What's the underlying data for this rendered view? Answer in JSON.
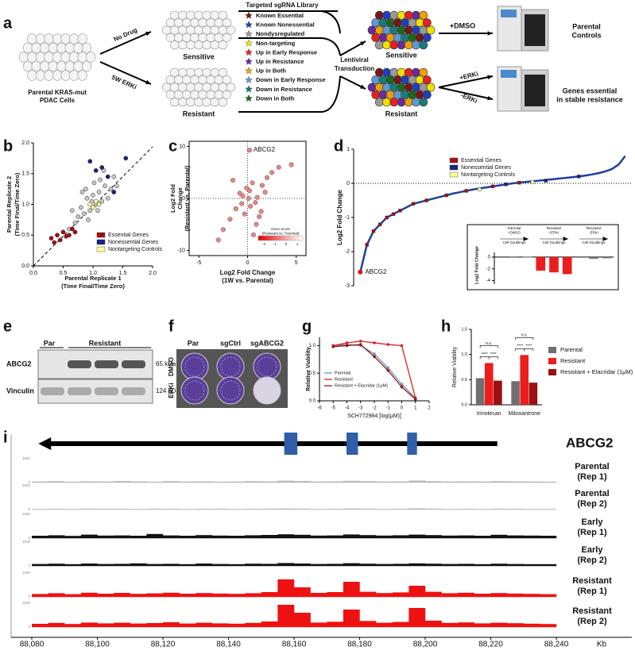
{
  "panel_labels": [
    "a",
    "b",
    "c",
    "d",
    "e",
    "f",
    "g",
    "h",
    "i"
  ],
  "schematic": {
    "start": [
      "Parental KRAS-mut",
      "PDAC Cells"
    ],
    "arms": [
      "No Drug",
      "5W ERKi"
    ],
    "populations": [
      "Sensitive",
      "Resistant"
    ],
    "library_title": "Targeted sgRNA Library",
    "library": [
      {
        "name": "Known Essential",
        "color": "#7b1616"
      },
      {
        "name": "Known Nonessential",
        "color": "#1f3fbf"
      },
      {
        "name": "Nondysregulated",
        "color": "#999999"
      },
      {
        "name": "Non-targeting",
        "color": "#f0e000"
      },
      {
        "name": "Up in Early Response",
        "color": "#e82020"
      },
      {
        "name": "Up in Resistance",
        "color": "#6a2a9a"
      },
      {
        "name": "Up in Both",
        "color": "#f0a000"
      },
      {
        "name": "Down in Early Response",
        "color": "#5b9bd5"
      },
      {
        "name": "Down in Resistance",
        "color": "#1a7a7a"
      },
      {
        "name": "Down in Both",
        "color": "#1a6a1a"
      }
    ],
    "transduction": [
      "Lentiviral",
      "Transduction"
    ],
    "transduced": [
      "Sensitive",
      "Resistant"
    ],
    "treatments": [
      "+DMSO",
      "+ERKi",
      "-ERKi"
    ],
    "outcomes": [
      [
        "Parental",
        "Controls"
      ],
      [
        "Genes essential",
        "in stable resistance"
      ]
    ]
  },
  "blot": {
    "lanes": [
      "Par",
      "Resistant"
    ],
    "proteins": [
      "ABCG2",
      "Vinculin"
    ],
    "sizes": [
      "65 kDa",
      "124 kDa"
    ]
  },
  "colony": {
    "columns": [
      "Par",
      "sgCtrl",
      "sgABCG2"
    ],
    "rows": [
      "DMSO",
      "ERKi"
    ]
  },
  "chart_data": [
    {
      "type": "scatter",
      "xlabel": [
        "Parental Replicate 1",
        "(Time Final/Time Zero)"
      ],
      "ylabel": [
        "Parental Replicate 2",
        "(Time Final/Time Zero)"
      ],
      "xlim": [
        0,
        2
      ],
      "ylim": [
        0,
        2
      ],
      "xticks": [
        {
          "value": 0,
          "label": "0.0"
        },
        {
          "value": 0.5,
          "label": "0.5"
        },
        {
          "value": 1,
          "label": "1.0"
        },
        {
          "value": 1.5,
          "label": "1.5"
        },
        {
          "value": 2,
          "label": "2.0"
        }
      ],
      "yticks": [
        {
          "value": 0,
          "label": "0.0"
        },
        {
          "value": 0.5,
          "label": "0.5"
        },
        {
          "value": 1,
          "label": "1.0"
        },
        {
          "value": 1.5,
          "label": "1.5"
        },
        {
          "value": 2,
          "label": "2.0"
        }
      ],
      "series": [
        {
          "color": "#c8c8c8",
          "x": [
            0.75,
            0.8,
            0.85,
            0.9,
            0.95,
            1.0,
            1.05,
            1.1,
            1.15,
            1.2,
            1.25,
            0.7,
            0.88,
            0.92,
            1.02,
            1.08,
            1.12,
            1.3,
            0.65,
            0.98,
            1.18,
            1.4,
            0.6,
            1.35,
            0.82
          ],
          "y": [
            0.8,
            0.95,
            0.85,
            1.1,
            0.9,
            1.15,
            1.0,
            1.2,
            1.05,
            1.3,
            1.1,
            0.7,
            1.25,
            0.75,
            1.35,
            0.9,
            1.4,
            1.25,
            0.9,
            1.05,
            1.55,
            1.3,
            0.6,
            1.45,
            1.2
          ]
        },
        {
          "name": "Essential Genes",
          "color": "#a50f15",
          "x": [
            0.3,
            0.4,
            0.45,
            0.5,
            0.55,
            0.6,
            0.65,
            0.7,
            0.35
          ],
          "y": [
            0.45,
            0.5,
            0.42,
            0.55,
            0.48,
            0.5,
            0.6,
            0.55,
            0.38
          ]
        },
        {
          "name": "Nonessential Genes",
          "color": "#1a237e",
          "x": [
            0.95,
            1.05,
            1.15,
            1.25,
            1.55,
            1.35
          ],
          "y": [
            1.7,
            1.55,
            1.6,
            1.45,
            1.75,
            1.2
          ]
        },
        {
          "name": "Nontargeting Controls",
          "color": "#ffff99",
          "x": [
            0.95,
            1.0,
            1.05,
            1.1
          ],
          "y": [
            1.0,
            0.95,
            1.05,
            1.0
          ]
        }
      ]
    },
    {
      "type": "scatter",
      "xlabel": [
        "Log2  Fold  Change",
        "(1W vs. Parental)"
      ],
      "ylabel": [
        "Log2 Fold",
        "Change",
        "(Resistant vs. Parental)"
      ],
      "xlim": [
        -6,
        6
      ],
      "ylim": [
        -11,
        11
      ],
      "xticks": [
        -5,
        0,
        5
      ],
      "yticks": [
        -10,
        0,
        10
      ],
      "series": [
        {
          "color": "#e08a8a",
          "x": [
            -0.5,
            0.2,
            0.8,
            -1.2,
            1.5,
            -0.3,
            0.5,
            1.0,
            -0.8,
            2.0,
            -1.8,
            0.3,
            1.2,
            -0.1,
            2.5,
            -2.5,
            0.9,
            -1.5,
            3.2,
            0.6,
            -0.6,
            1.8,
            4.5,
            -3,
            0.1,
            1.4
          ],
          "y": [
            0.5,
            1.5,
            -0.8,
            -2,
            2.5,
            -3,
            3,
            0.2,
            1,
            4,
            -4,
            -1.5,
            -3.5,
            2,
            5,
            -6,
            -5,
            3.5,
            6,
            -7,
            -1,
            1.2,
            6.5,
            -8,
            0,
            -2.5
          ]
        }
      ],
      "annotations": [
        {
          "text": "ABCG2",
          "x": 0.2,
          "y": 9.3
        }
      ],
      "colorbar": {
        "title": [
          "Gene Score",
          "(Resistant vs. Parental)"
        ],
        "ticks": [
          -2,
          -1,
          0,
          1
        ]
      }
    },
    {
      "type": "line",
      "ylabel": "Log2 Fold  Change",
      "xlim": [
        -1,
        41
      ],
      "ylim": [
        -3,
        1
      ],
      "yticks": [
        -3,
        -2,
        -1,
        0,
        1
      ],
      "series": [
        {
          "color": "#1f3f9f",
          "x": [
            0,
            1,
            2,
            3,
            4,
            5,
            6,
            7,
            8,
            9,
            10,
            11,
            12,
            13,
            14,
            15,
            16,
            17,
            18,
            19,
            20,
            21,
            22,
            23,
            24,
            25,
            26,
            27,
            28,
            29,
            30,
            31,
            32,
            33,
            34,
            35,
            36,
            37,
            38,
            39,
            40
          ],
          "values": [
            -2.6,
            -1.8,
            -1.4,
            -1.2,
            -1.0,
            -0.9,
            -0.8,
            -0.7,
            -0.6,
            -0.55,
            -0.5,
            -0.45,
            -0.4,
            -0.35,
            -0.3,
            -0.26,
            -0.22,
            -0.18,
            -0.15,
            -0.12,
            -0.09,
            -0.06,
            -0.03,
            0,
            0.02,
            0.04,
            0.06,
            0.08,
            0.1,
            0.12,
            0.14,
            0.16,
            0.18,
            0.2,
            0.23,
            0.26,
            0.3,
            0.35,
            0.42,
            0.55,
            0.8
          ]
        },
        {
          "name": "Essential Genes",
          "color": "#a50f15",
          "x": [
            1,
            2,
            3,
            4,
            5,
            6,
            8,
            10,
            13,
            16,
            20,
            24
          ],
          "values": [
            -1.8,
            -1.4,
            -1.2,
            -1.0,
            -0.9,
            -0.8,
            -0.6,
            -0.5,
            -0.35,
            -0.22,
            -0.09,
            0.02
          ]
        },
        {
          "name": "Nonessential Genes",
          "color": "#1a237e",
          "x": [
            22,
            28,
            33
          ],
          "values": [
            -0.03,
            0.08,
            0.2
          ]
        },
        {
          "name": "Nontargeting Controls",
          "color": "#ffff99",
          "x": [
            18,
            26
          ],
          "values": [
            -0.18,
            0.04
          ]
        }
      ],
      "annotations": [
        {
          "text": "ABCG2",
          "x": 0,
          "y": -2.6
        }
      ]
    },
    {
      "type": "bar",
      "ylabel": "Log2 Fold Change",
      "ylim": [
        -4.6,
        0.8
      ],
      "yticks": [
        0,
        -2,
        -4
      ],
      "values": [
        -0.1,
        0.1,
        0.05,
        -2.3,
        -2.6,
        -2.9,
        -0.1,
        -0.3,
        -0.2
      ],
      "groups": [
        {
          "lines": [
            "Parental",
            "+DMSO"
          ],
          "sublabel": "Cell Doublings",
          "color": "#777777"
        },
        {
          "lines": [
            "Resistant",
            "+ERKi"
          ],
          "sublabel": "Cell Doublings",
          "color": "#ee1c1c"
        },
        {
          "lines": [
            "Resistant",
            "-ERKi"
          ],
          "sublabel": "Cell Doublings",
          "color": "#777777"
        }
      ]
    },
    {
      "type": "line",
      "xlabel": "SCH772984 [log(μM)]",
      "ylabel": "Relative Viability",
      "xlim": [
        -6,
        2
      ],
      "ylim": [
        0,
        1.15
      ],
      "xticks": [
        -6,
        -5,
        -4,
        -3,
        -2,
        -1,
        0,
        1,
        2
      ],
      "yticks": [
        {
          "value": 0,
          "label": "0.0"
        },
        {
          "value": 0.5,
          "label": "0.5"
        },
        {
          "value": 1,
          "label": "1.0"
        }
      ],
      "x": [
        -5,
        -4,
        -3,
        -2,
        -1,
        0,
        1
      ],
      "series": [
        {
          "name": "Parental",
          "color": "#7b8fb5",
          "values": [
            1.0,
            1.02,
            1.0,
            0.85,
            0.6,
            0.3,
            0.05
          ]
        },
        {
          "name": "Resistant",
          "color": "#e02020",
          "values": [
            1.0,
            1.05,
            1.08,
            1.05,
            1.02,
            1.0,
            0.05
          ]
        },
        {
          "name": "Resistant + Elacridar (1μM)",
          "color": "#8b1a1a",
          "values": [
            0.98,
            1.0,
            1.02,
            0.8,
            0.55,
            0.25,
            0.03
          ]
        }
      ]
    },
    {
      "type": "bar",
      "ylabel": "Relative Viability",
      "ylim": [
        0,
        1.5
      ],
      "yticks": [
        {
          "value": 0,
          "label": "0.0"
        },
        {
          "value": 0.5,
          "label": "0.5"
        },
        {
          "value": 1,
          "label": "1.0"
        },
        {
          "value": 1.5,
          "label": "1.5"
        }
      ],
      "categories": [
        "Irinotecan",
        "Mitoxantrone"
      ],
      "series": [
        {
          "name": "Parental",
          "color": "#6f6f6f",
          "values": [
            0.53,
            0.47
          ]
        },
        {
          "name": "Resistant",
          "color": "#ee1c1c",
          "values": [
            0.83,
            0.99
          ]
        },
        {
          "name": "Resistant + Elacridar (1μM)",
          "color": "#9b1010",
          "values": [
            0.48,
            0.44
          ]
        }
      ],
      "significance": [
        [
          "n.s.",
          "****",
          "****"
        ],
        [
          "n.s.",
          "****",
          "****"
        ]
      ]
    },
    {
      "type": "track",
      "gene": "ABCG2",
      "gene_span": [
        88082,
        88222
      ],
      "exons": [
        [
          88157,
          88161
        ],
        [
          88176,
          88179.5
        ],
        [
          88194.5,
          88197.5
        ]
      ],
      "xlim": [
        88080,
        88240
      ],
      "unit": "Kb",
      "ylim": [
        0,
        1500
      ],
      "yticks": [
        0,
        1500
      ],
      "xticks": [
        {
          "value": 88080,
          "label": "88,080"
        },
        {
          "value": 88100,
          "label": "88,100"
        },
        {
          "value": 88120,
          "label": "88,120"
        },
        {
          "value": 88140,
          "label": "88,140"
        },
        {
          "value": 88160,
          "label": "88,160"
        },
        {
          "value": 88180,
          "label": "88,180"
        },
        {
          "value": 88200,
          "label": "88,200"
        },
        {
          "value": 88220,
          "label": "88,220"
        },
        {
          "value": 88240,
          "label": "88,240"
        }
      ],
      "bins": [
        88080,
        88085,
        88090,
        88095,
        88100,
        88105,
        88110,
        88115,
        88120,
        88125,
        88130,
        88135,
        88140,
        88145,
        88150,
        88155,
        88160,
        88165,
        88170,
        88175,
        88180,
        88185,
        88190,
        88195,
        88200,
        88205,
        88210,
        88215,
        88220,
        88225,
        88230,
        88235,
        88240
      ],
      "tracks": [
        {
          "name": [
            "Parental",
            "(Rep 1)"
          ],
          "color": "#bbbbbb",
          "values": [
            70,
            90,
            60,
            80,
            70,
            100,
            80,
            60,
            90,
            70,
            80,
            60,
            70,
            90,
            80,
            120,
            100,
            70,
            80,
            110,
            90,
            70,
            80,
            130,
            90,
            70,
            80,
            70,
            90,
            80,
            70,
            60
          ]
        },
        {
          "name": [
            "Parental",
            "(Rep 2)"
          ],
          "color": "#bbbbbb",
          "values": [
            40,
            50,
            40,
            60,
            50,
            50,
            40,
            60,
            50,
            40,
            50,
            60,
            40,
            50,
            60,
            70,
            60,
            40,
            50,
            70,
            60,
            40,
            50,
            80,
            60,
            40,
            50,
            40,
            60,
            50,
            40,
            40
          ]
        },
        {
          "name": [
            "Early",
            "(Rep 1)"
          ],
          "color": "#111111",
          "values": [
            150,
            180,
            140,
            220,
            160,
            170,
            150,
            260,
            170,
            150,
            190,
            160,
            150,
            180,
            200,
            240,
            210,
            160,
            170,
            230,
            190,
            160,
            180,
            220,
            190,
            160,
            170,
            150,
            210,
            170,
            160,
            150
          ]
        },
        {
          "name": [
            "Early",
            "(Rep 2)"
          ],
          "color": "#111111",
          "values": [
            120,
            140,
            110,
            150,
            120,
            130,
            160,
            120,
            130,
            110,
            150,
            120,
            110,
            140,
            130,
            180,
            150,
            120,
            130,
            170,
            140,
            120,
            130,
            160,
            140,
            120,
            130,
            110,
            140,
            120,
            110,
            110
          ]
        },
        {
          "name": [
            "Resistant",
            "(Rep 1)"
          ],
          "color": "#ee1111",
          "values": [
            180,
            230,
            170,
            260,
            200,
            250,
            190,
            220,
            260,
            200,
            240,
            210,
            190,
            230,
            300,
            1100,
            600,
            250,
            300,
            950,
            320,
            240,
            280,
            700,
            320,
            230,
            260,
            200,
            240,
            210,
            190,
            170
          ]
        },
        {
          "name": [
            "Resistant",
            "(Rep 2)"
          ],
          "color": "#ee1111",
          "values": [
            200,
            260,
            190,
            280,
            230,
            270,
            220,
            250,
            300,
            220,
            270,
            230,
            210,
            260,
            350,
            1400,
            900,
            280,
            330,
            1100,
            380,
            270,
            320,
            1200,
            400,
            260,
            290,
            230,
            270,
            240,
            210,
            190
          ]
        }
      ]
    }
  ]
}
